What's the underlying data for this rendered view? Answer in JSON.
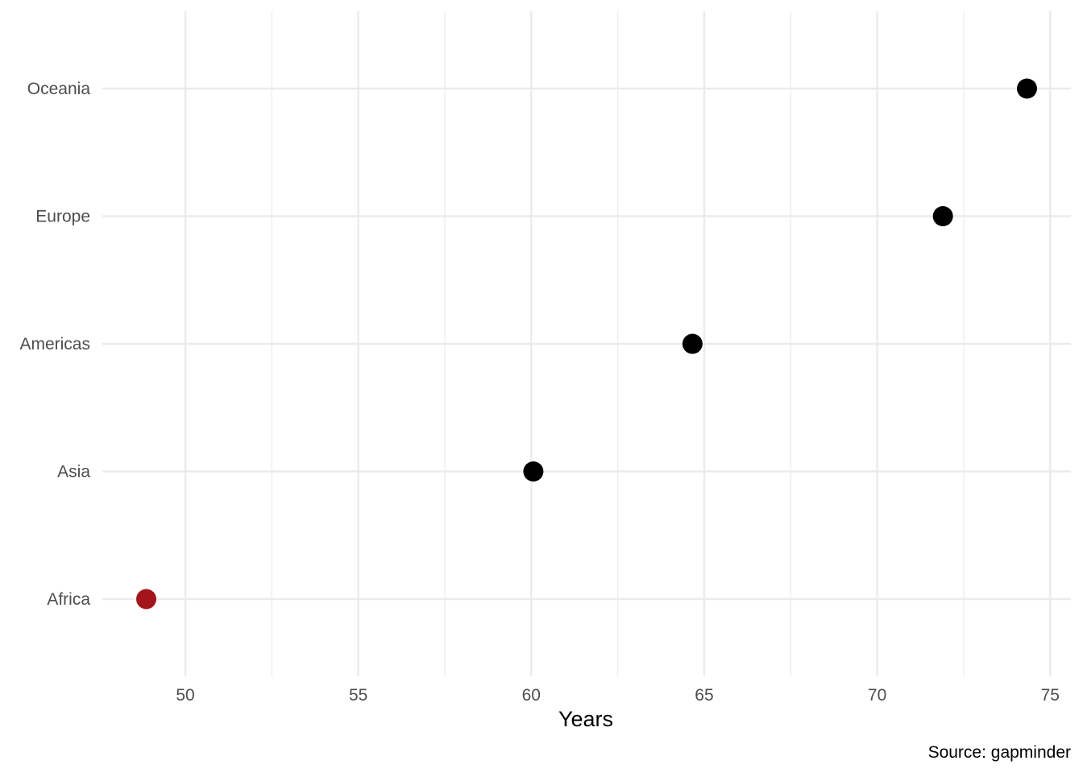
{
  "chart_data": {
    "type": "scatter",
    "title": "",
    "xlabel": "Years",
    "ylabel": "",
    "caption": "Source: gapminder",
    "xlim": [
      47.6,
      75.6
    ],
    "x_ticks": [
      "50",
      "55",
      "60",
      "65",
      "70",
      "75"
    ],
    "x_tick_values": [
      50,
      55,
      60,
      65,
      70,
      75
    ],
    "categories": [
      "Africa",
      "Asia",
      "Americas",
      "Europe",
      "Oceania"
    ],
    "values": [
      48.87,
      60.06,
      64.66,
      71.9,
      74.33
    ],
    "highlight_category": "Africa",
    "grid": true,
    "colors": {
      "default": "#000000",
      "highlight": "#a3141b",
      "grid": "#ebebeb"
    }
  }
}
